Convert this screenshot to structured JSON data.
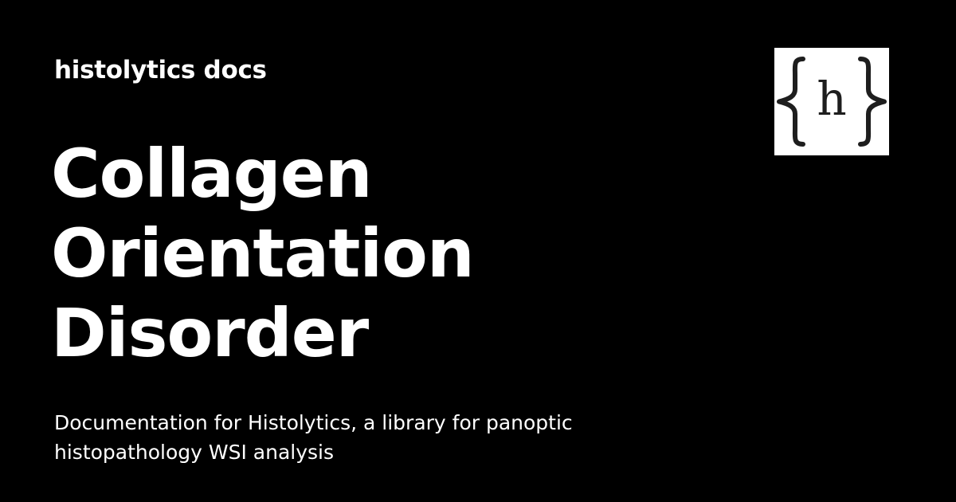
{
  "site": {
    "name": "histolytics docs"
  },
  "page": {
    "title_lines": [
      "Collagen",
      "Orientation",
      "Disorder"
    ],
    "description": "Documentation for Histolytics, a library for panoptic histopathology WSI analysis"
  },
  "logo": {
    "icon": "curly-brace-h-logo-icon",
    "letter": "h",
    "background": "#ffffff",
    "foreground": "#1e1e1e"
  },
  "colors": {
    "background": "#000000",
    "text": "#ffffff"
  }
}
